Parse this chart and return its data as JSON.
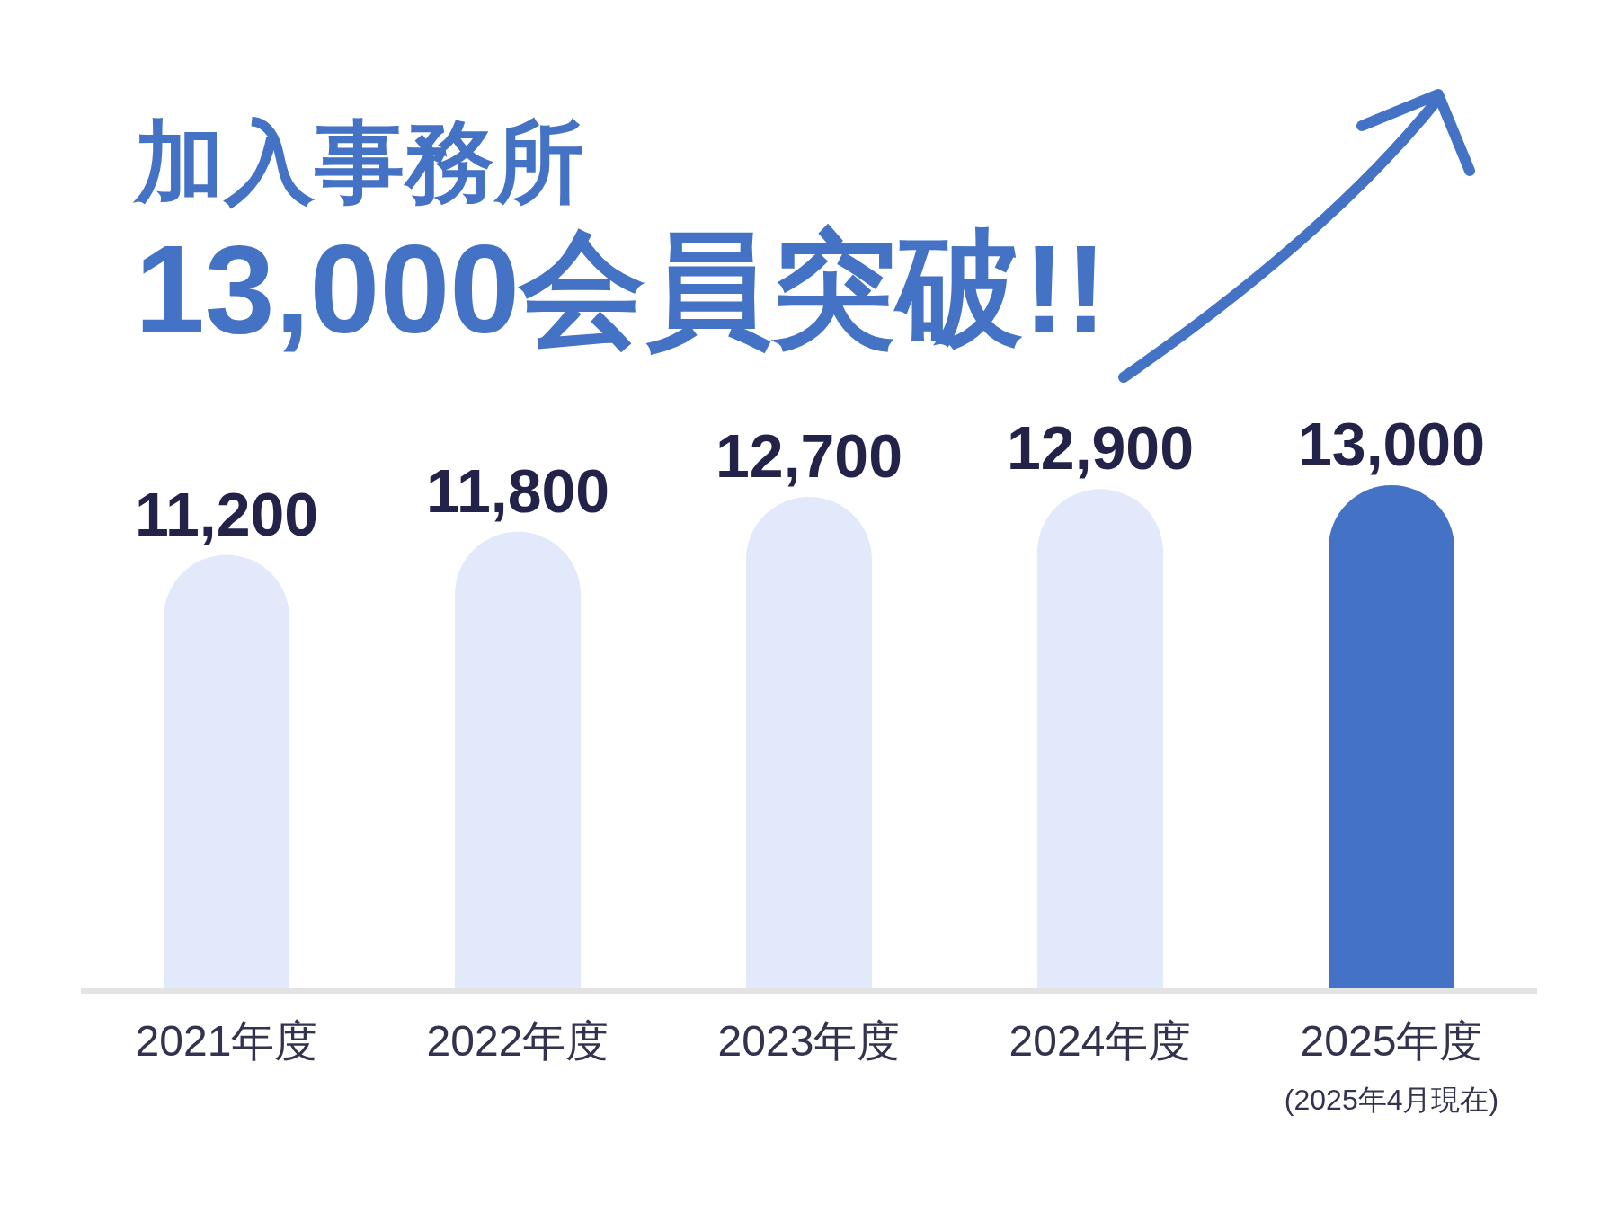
{
  "chart_data": {
    "type": "bar",
    "title": "加入事務所",
    "subtitle": "13,000会員突破!!",
    "categories": [
      "2021年度",
      "2022年度",
      "2023年度",
      "2024年度",
      "2025年度"
    ],
    "values": [
      11200,
      11800,
      12700,
      12900,
      13000
    ],
    "colors": [
      "#e1e9fb",
      "#e1e9fb",
      "#e1e9fb",
      "#e1e9fb",
      "#4472c4"
    ],
    "value_labels": [
      "11,200",
      "11,800",
      "12,700",
      "12,900",
      "13,000"
    ],
    "annotations": [
      "(2025年4月現在)"
    ]
  }
}
